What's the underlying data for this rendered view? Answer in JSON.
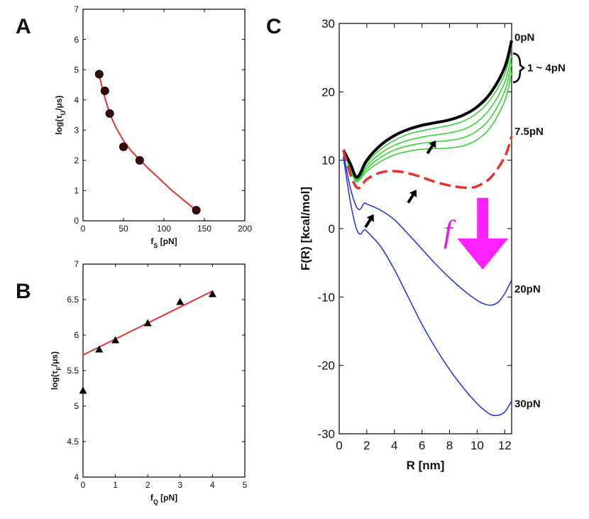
{
  "panels": {
    "A": "A",
    "B": "B",
    "C": "C"
  },
  "chart_data": [
    {
      "id": "A",
      "type": "scatter",
      "xlabel": "f_S [pN]",
      "ylabel": "log(τ_U/μs)",
      "xlim": [
        0,
        200
      ],
      "ylim": [
        0,
        7
      ],
      "xticks": [
        0,
        50,
        100,
        150,
        200
      ],
      "yticks": [
        0,
        1,
        2,
        3,
        4,
        5,
        6,
        7
      ],
      "x": [
        20,
        27,
        33,
        50,
        70,
        140
      ],
      "y": [
        4.85,
        4.3,
        3.55,
        2.45,
        2.0,
        0.35
      ],
      "fit": {
        "x": [
          20,
          25,
          30,
          35,
          40,
          50,
          60,
          70,
          80,
          90,
          100,
          110,
          120,
          130,
          140
        ],
        "y": [
          4.82,
          4.25,
          3.8,
          3.43,
          3.12,
          2.65,
          2.3,
          2.02,
          1.75,
          1.5,
          1.25,
          1.0,
          0.78,
          0.56,
          0.35
        ]
      },
      "marker_color": "#000000",
      "line_color": "#e8312e"
    },
    {
      "id": "B",
      "type": "scatter",
      "xlabel": "f_Q [pN]",
      "ylabel": "log(τ_F/μs)",
      "xlim": [
        0,
        5
      ],
      "ylim": [
        4,
        7
      ],
      "xticks": [
        0,
        1,
        2,
        3,
        4,
        5
      ],
      "yticks": [
        4,
        4.5,
        5,
        5.5,
        6,
        6.5,
        7
      ],
      "x": [
        0,
        0.5,
        1,
        2,
        3,
        4
      ],
      "y": [
        5.22,
        5.8,
        5.93,
        6.17,
        6.47,
        6.58
      ],
      "fit": {
        "x": [
          0,
          4
        ],
        "y": [
          5.72,
          6.62
        ]
      },
      "marker_color": "#000000",
      "line_color": "#e8312e"
    },
    {
      "id": "C",
      "type": "line",
      "xlabel": "R [nm]",
      "ylabel": "F(R) [kcal/mol]",
      "xlim": [
        0,
        12.5
      ],
      "ylim": [
        -30,
        30
      ],
      "xticks": [
        0,
        2,
        4,
        6,
        8,
        10,
        12
      ],
      "yticks": [
        -30,
        -20,
        -10,
        0,
        10,
        20,
        30
      ],
      "series": [
        {
          "name": "0pN",
          "color": "#000000",
          "style": "solid",
          "width": 4,
          "x": [
            0.3,
            0.8,
            1.2,
            1.5,
            2,
            3,
            4,
            5,
            6,
            7,
            8,
            9,
            10,
            11,
            12,
            12.5
          ],
          "y": [
            11.5,
            9.5,
            7.6,
            8.0,
            10.0,
            12.2,
            13.6,
            14.5,
            15.1,
            15.5,
            15.9,
            16.6,
            17.8,
            19.9,
            23.6,
            27.5
          ]
        },
        {
          "name": "1pN",
          "color": "#2bd12b",
          "style": "solid",
          "width": 1.5,
          "x": [
            0.3,
            0.8,
            1.2,
            1.5,
            2,
            3,
            4,
            5,
            6,
            7,
            8,
            9,
            10,
            11,
            12,
            12.5
          ],
          "y": [
            11.5,
            9.2,
            7.5,
            7.8,
            9.6,
            11.6,
            12.9,
            13.8,
            14.3,
            14.7,
            15.1,
            15.7,
            16.9,
            19.0,
            22.6,
            26.5
          ]
        },
        {
          "name": "2pN",
          "color": "#2bd12b",
          "style": "solid",
          "width": 1.5,
          "x": [
            0.3,
            0.8,
            1.2,
            1.5,
            2,
            3,
            4,
            5,
            6,
            7,
            8,
            9,
            10,
            11,
            12,
            12.5
          ],
          "y": [
            11.5,
            9.0,
            7.3,
            7.6,
            9.2,
            11.0,
            12.2,
            12.9,
            13.4,
            13.7,
            14.0,
            14.5,
            15.6,
            17.7,
            21.4,
            25.3
          ]
        },
        {
          "name": "3pN",
          "color": "#2bd12b",
          "style": "solid",
          "width": 1.5,
          "x": [
            0.3,
            0.8,
            1.2,
            1.5,
            2,
            3,
            4,
            5,
            6,
            7,
            8,
            9,
            10,
            11,
            12,
            12.5
          ],
          "y": [
            11.5,
            8.8,
            7.1,
            7.4,
            8.8,
            10.4,
            11.5,
            12.1,
            12.5,
            12.7,
            12.9,
            13.3,
            14.3,
            16.3,
            20.1,
            24.1
          ]
        },
        {
          "name": "4pN",
          "color": "#2bd12b",
          "style": "solid",
          "width": 1.5,
          "x": [
            0.3,
            0.8,
            1.2,
            1.5,
            2,
            3,
            4,
            5,
            6,
            7,
            8,
            9,
            10,
            11,
            12,
            12.5
          ],
          "y": [
            11.5,
            8.6,
            6.9,
            7.2,
            8.4,
            9.8,
            10.8,
            11.3,
            11.6,
            11.7,
            11.8,
            12.1,
            13.0,
            14.9,
            18.7,
            22.8
          ]
        },
        {
          "name": "7.5pN",
          "color": "#e8312e",
          "style": "dashed",
          "width": 3.5,
          "x": [
            0.3,
            0.8,
            1.2,
            1.5,
            2,
            3,
            4,
            5,
            6,
            7,
            8,
            9,
            9.5,
            10,
            11,
            12,
            12.5
          ],
          "y": [
            11.5,
            8.0,
            6.2,
            6.0,
            7.2,
            8.2,
            8.4,
            8.1,
            7.5,
            6.8,
            6.3,
            6.0,
            6.0,
            6.2,
            7.5,
            10.5,
            13.5
          ]
        },
        {
          "name": "20pN",
          "color": "#1e2fe6",
          "style": "solid",
          "width": 1.5,
          "x": [
            0.3,
            0.8,
            1.2,
            1.5,
            1.8,
            2,
            3,
            4,
            5,
            6,
            7,
            8,
            9,
            10,
            10.5,
            11,
            11.5,
            12,
            12.5
          ],
          "y": [
            11.0,
            6.0,
            3.4,
            2.8,
            3.7,
            3.6,
            2.7,
            1.3,
            -0.8,
            -3.0,
            -5.2,
            -7.2,
            -9.0,
            -10.5,
            -11.0,
            -11.2,
            -10.8,
            -9.5,
            -7.5
          ]
        },
        {
          "name": "30pN",
          "color": "#1e2fe6",
          "style": "solid",
          "width": 1.5,
          "x": [
            0.3,
            0.8,
            1.2,
            1.5,
            1.8,
            2,
            3,
            4,
            5,
            6,
            7,
            8,
            9,
            10,
            10.5,
            11,
            11.5,
            12,
            12.5
          ],
          "y": [
            10.5,
            4.0,
            0.3,
            -0.8,
            -0.2,
            -0.4,
            -2.6,
            -6.0,
            -10.0,
            -14.0,
            -17.5,
            -20.6,
            -23.3,
            -25.6,
            -26.5,
            -27.2,
            -27.3,
            -26.8,
            -25.2
          ]
        }
      ],
      "labels": {
        "l0": "0pN",
        "l14": "1 ~ 4pN",
        "l75": "7.5pN",
        "l20": "20pN",
        "l30": "30pN",
        "force": "f"
      },
      "arrows": [
        {
          "x": 1.9,
          "y": 0.2,
          "dx": 0.6,
          "dy": 1.9
        },
        {
          "x": 5.0,
          "y": 3.8,
          "dx": 0.6,
          "dy": 1.9
        },
        {
          "x": 6.4,
          "y": 11.0,
          "dx": 0.6,
          "dy": 1.9
        }
      ],
      "force_arrow": {
        "x": 10.4,
        "y_from": 4.5,
        "y_to": -6.0,
        "color": "#ff22ff"
      }
    }
  ]
}
